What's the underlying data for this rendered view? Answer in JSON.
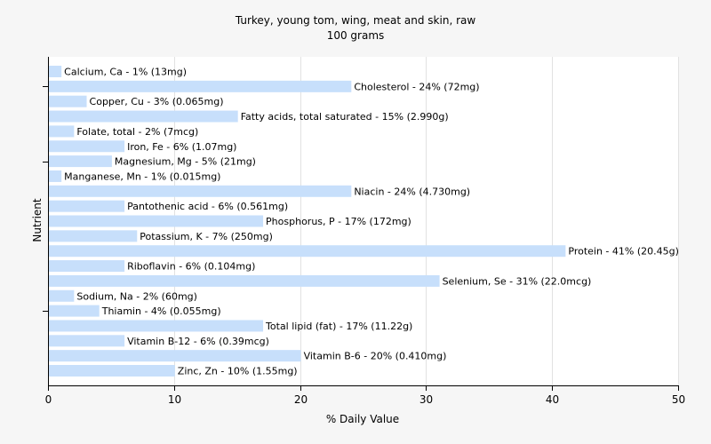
{
  "chart_data": {
    "type": "bar",
    "orientation": "horizontal",
    "title": "Turkey, young tom, wing, meat and skin, raw",
    "subtitle": "100 grams",
    "xlabel": "% Daily Value",
    "ylabel": "Nutrient",
    "xlim": [
      0,
      50
    ],
    "xticks": [
      0,
      10,
      20,
      30,
      40,
      50
    ],
    "grid": true,
    "bar_color": "#c7dffb",
    "categories": [
      "Calcium, Ca",
      "Cholesterol",
      "Copper, Cu",
      "Fatty acids, total saturated",
      "Folate, total",
      "Iron, Fe",
      "Magnesium, Mg",
      "Manganese, Mn",
      "Niacin",
      "Pantothenic acid",
      "Phosphorus, P",
      "Potassium, K",
      "Protein",
      "Riboflavin",
      "Selenium, Se",
      "Sodium, Na",
      "Thiamin",
      "Total lipid (fat)",
      "Vitamin B-12",
      "Vitamin B-6",
      "Zinc, Zn"
    ],
    "values": [
      1,
      24,
      3,
      15,
      2,
      6,
      5,
      1,
      24,
      6,
      17,
      7,
      41,
      6,
      31,
      2,
      4,
      17,
      6,
      20,
      10
    ],
    "labels": [
      "Calcium, Ca - 1% (13mg)",
      "Cholesterol - 24% (72mg)",
      "Copper, Cu - 3% (0.065mg)",
      "Fatty acids, total saturated - 15% (2.990g)",
      "Folate, total - 2% (7mcg)",
      "Iron, Fe - 6% (1.07mg)",
      "Magnesium, Mg - 5% (21mg)",
      "Manganese, Mn - 1% (0.015mg)",
      "Niacin - 24% (4.730mg)",
      "Pantothenic acid - 6% (0.561mg)",
      "Phosphorus, P - 17% (172mg)",
      "Potassium, K - 7% (250mg)",
      "Protein - 41% (20.45g)",
      "Riboflavin - 6% (0.104mg)",
      "Selenium, Se - 31% (22.0mcg)",
      "Sodium, Na - 2% (60mg)",
      "Thiamin - 4% (0.055mg)",
      "Total lipid (fat) - 17% (11.22g)",
      "Vitamin B-12 - 6% (0.39mcg)",
      "Vitamin B-6 - 20% (0.410mg)",
      "Zinc, Zn - 10% (1.55mg)"
    ]
  }
}
